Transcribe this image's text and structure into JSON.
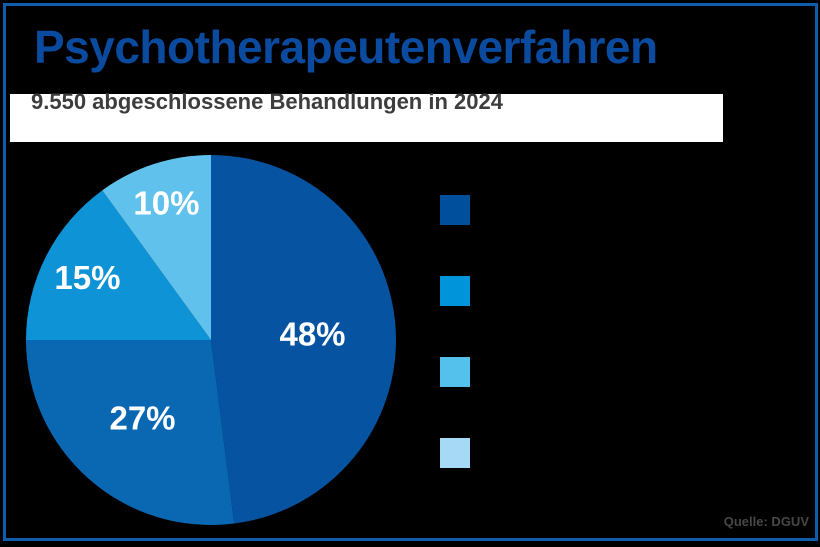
{
  "header": {
    "title": "Psychotherapeutenverfahren",
    "subtitle": "9.550 abgeschlossene Behandlungen in 2024"
  },
  "source": {
    "label": "Quelle: DGUV"
  },
  "colors": {
    "background": "#000000",
    "border": "#0e5caa",
    "title": "#0b4b9f",
    "subtitle_band": "#ffffff",
    "subtitle_text": "#3d3d3d",
    "source_text": "#474747",
    "pie_label_text": "#ffffff"
  },
  "chart_data": {
    "type": "pie",
    "title": "Psychotherapeutenverfahren",
    "subtitle": "9.550 abgeschlossene Behandlungen in 2024",
    "unit": "%",
    "start_angle_deg": 0,
    "direction": "clockwise",
    "segments": [
      {
        "value": 48,
        "label": "48%",
        "color": "#0553a1",
        "label_radius_factor": 0.55
      },
      {
        "value": 27,
        "label": "27%",
        "color": "#0a68b3",
        "label_radius_factor": 0.56
      },
      {
        "value": 15,
        "label": "15%",
        "color": "#0e93d6",
        "label_radius_factor": 0.75
      },
      {
        "value": 10,
        "label": "10%",
        "color": "#60c2ec",
        "label_radius_factor": 0.78
      }
    ],
    "legend": {
      "position": "right",
      "labels_visible": false,
      "swatch_colors": [
        "#004f9c",
        "#0095da",
        "#54c0ec",
        "#a6d9f6"
      ]
    }
  }
}
